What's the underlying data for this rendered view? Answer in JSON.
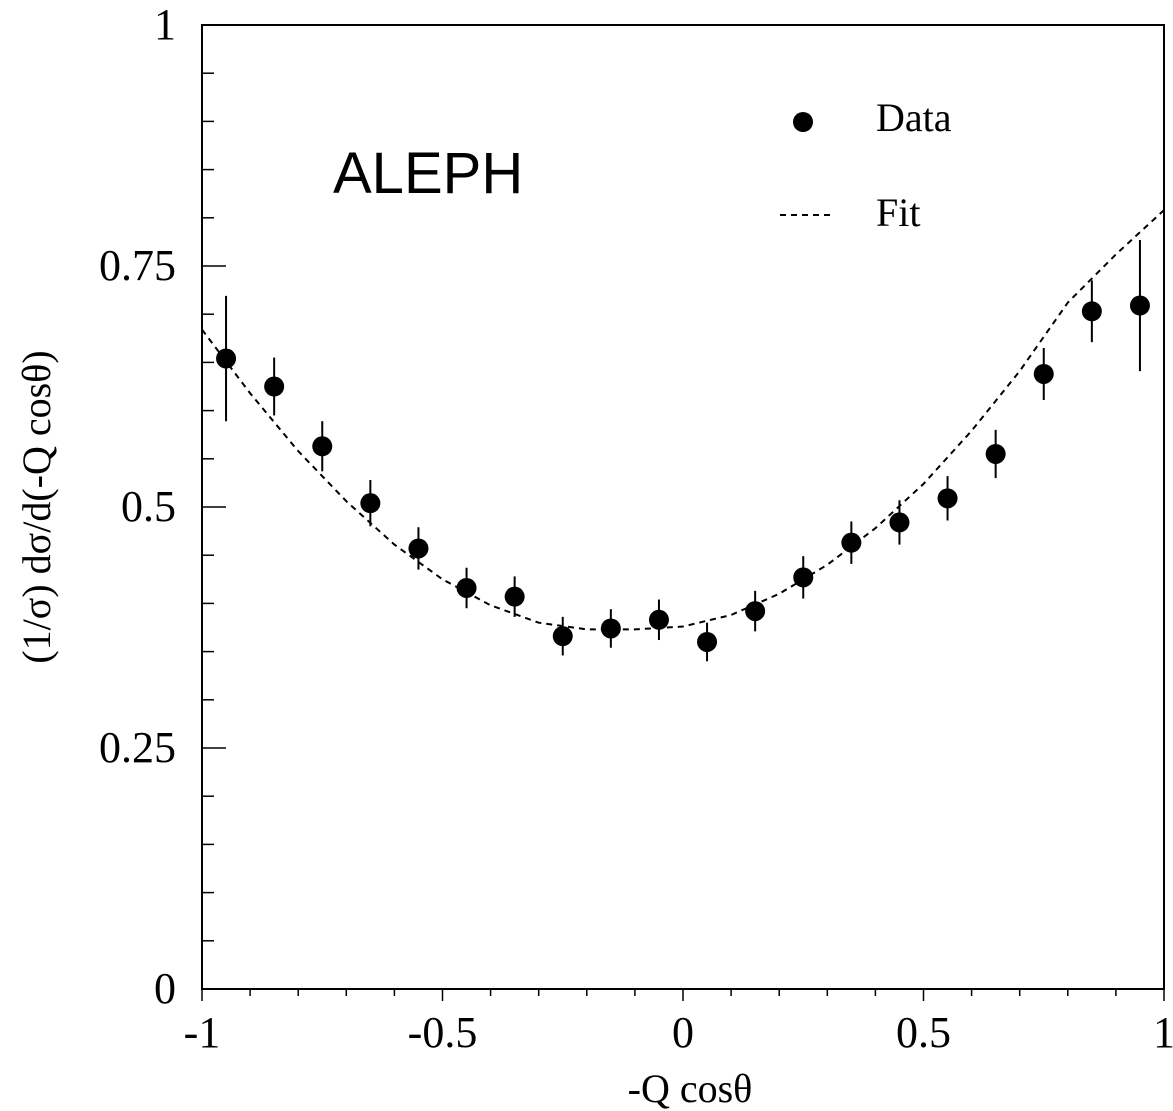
{
  "chart_data": {
    "type": "scatter",
    "title": "",
    "annotation": "ALEPH",
    "xlabel": "-Q cosθ",
    "ylabel": "(1/σ) dσ/d(-Q cosθ)",
    "xlim": [
      -1,
      1
    ],
    "ylim": [
      0,
      1
    ],
    "x_ticks": [
      {
        "value": -1,
        "label": "-1"
      },
      {
        "value": -0.5,
        "label": "-0.5"
      },
      {
        "value": 0,
        "label": "0"
      },
      {
        "value": 0.5,
        "label": "0.5"
      },
      {
        "value": 1,
        "label": "1"
      }
    ],
    "y_ticks": [
      {
        "value": 0,
        "label": "0"
      },
      {
        "value": 0.25,
        "label": "0.25"
      },
      {
        "value": 0.5,
        "label": "0.5"
      },
      {
        "value": 0.75,
        "label": "0.75"
      },
      {
        "value": 1,
        "label": "1"
      }
    ],
    "grid": false,
    "legend": {
      "position": "top-right",
      "entries": [
        {
          "label": "Data",
          "marker": "filled-circle"
        },
        {
          "label": "Fit",
          "marker": "dashed-line"
        }
      ]
    },
    "series": [
      {
        "name": "Data",
        "type": "scatter-errorbar",
        "x": [
          -0.95,
          -0.85,
          -0.75,
          -0.65,
          -0.55,
          -0.45,
          -0.35,
          -0.25,
          -0.15,
          -0.05,
          0.05,
          0.15,
          0.25,
          0.35,
          0.45,
          0.55,
          0.65,
          0.75,
          0.85,
          0.95
        ],
        "y": [
          0.654,
          0.625,
          0.563,
          0.504,
          0.457,
          0.416,
          0.407,
          0.366,
          0.374,
          0.383,
          0.36,
          0.392,
          0.427,
          0.463,
          0.484,
          0.509,
          0.555,
          0.638,
          0.703,
          0.709
        ],
        "yerr": [
          0.065,
          0.03,
          0.026,
          0.024,
          0.022,
          0.021,
          0.021,
          0.02,
          0.02,
          0.021,
          0.02,
          0.021,
          0.022,
          0.022,
          0.023,
          0.023,
          0.025,
          0.027,
          0.032,
          0.068
        ],
        "color": "#000000"
      },
      {
        "name": "Fit",
        "type": "line",
        "style": "dashed",
        "x": [
          -1,
          -0.9,
          -0.8,
          -0.7,
          -0.6,
          -0.5,
          -0.4,
          -0.3,
          -0.2,
          -0.1,
          0,
          0.1,
          0.2,
          0.3,
          0.4,
          0.5,
          0.6,
          0.7,
          0.8,
          0.9,
          1
        ],
        "y": [
          0.684,
          0.618,
          0.558,
          0.506,
          0.461,
          0.425,
          0.398,
          0.38,
          0.373,
          0.373,
          0.376,
          0.388,
          0.41,
          0.44,
          0.478,
          0.524,
          0.579,
          0.641,
          0.712,
          0.762,
          0.808
        ],
        "color": "#000000"
      }
    ]
  }
}
